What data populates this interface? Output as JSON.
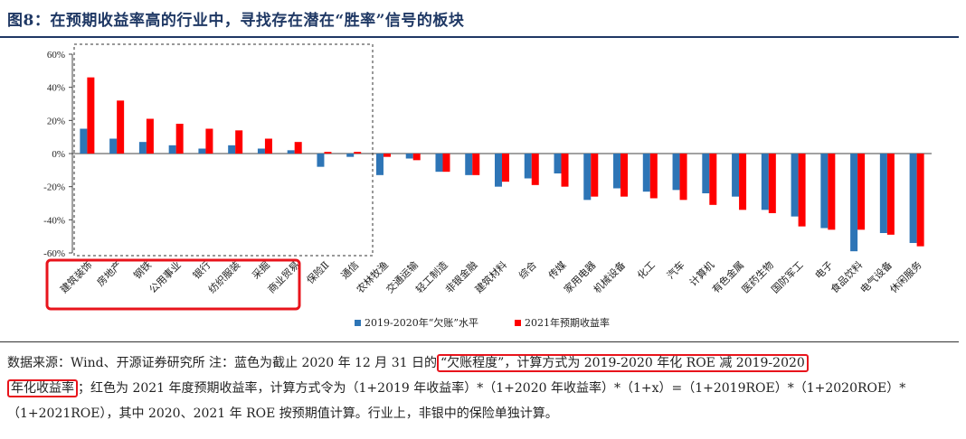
{
  "figure": {
    "title": "图8：在预期收益率高的行业中，寻找存在潜在“胜率”信号的板块"
  },
  "chart_data": {
    "type": "bar",
    "ylim": [
      -60,
      60
    ],
    "yticks": [
      "-60%",
      "-40%",
      "-20%",
      "0%",
      "20%",
      "40%",
      "60%"
    ],
    "legend_position": "bottom-center",
    "categories": [
      "建筑装饰",
      "房地产",
      "钢铁",
      "公用事业",
      "银行",
      "纺织服装",
      "采掘",
      "商业贸易",
      "保险Ⅱ",
      "通信",
      "农林牧渔",
      "交通运输",
      "轻工制造",
      "非银金融",
      "建筑材料",
      "综合",
      "传媒",
      "家用电器",
      "机械设备",
      "化工",
      "汽车",
      "计算机",
      "有色金属",
      "医药生物",
      "国防军工",
      "电子",
      "食品饮料",
      "电气设备",
      "休闲服务"
    ],
    "series": [
      {
        "name": "2019-2020年“欠账”水平",
        "color": "#2e75b6",
        "values": [
          15,
          9,
          7,
          5,
          3,
          5,
          3,
          2,
          -8,
          -2,
          -13,
          -3,
          -11,
          -13,
          -20,
          -15,
          -12,
          -28,
          -21,
          -23,
          -22,
          -24,
          -26,
          -34,
          -38,
          -45,
          -59,
          -48,
          -54
        ]
      },
      {
        "name": "2021年预期收益率",
        "color": "#ff0000",
        "values": [
          46,
          32,
          21,
          18,
          15,
          14,
          9,
          7,
          1,
          1,
          -2,
          -4,
          -11,
          -13,
          -17,
          -19,
          -20,
          -26,
          -26,
          -27,
          -28,
          -31,
          -34,
          -36,
          -44,
          -46,
          -46,
          -49,
          -56
        ]
      }
    ]
  },
  "note": {
    "part1": "数据来源：Wind、开源证券研究所 注：蓝色为截止 2020 年 12 月 31 日的",
    "hl1": "“欠账程度”，计算方式为 2019-2020 年化 ROE 减 2019-2020",
    "hl2": "年化收益率",
    "part2": "；红色为 2021 年度预期收益率，计算方式令为（1+2019 年收益率）*（1+2020 年收益率）*（1+x）=（1+2019ROE）*（1+2020ROE）*（1+2021ROE），其中 2020、2021 年 ROE 按预期值计算。行业上，非银中的保险单独计算。"
  }
}
